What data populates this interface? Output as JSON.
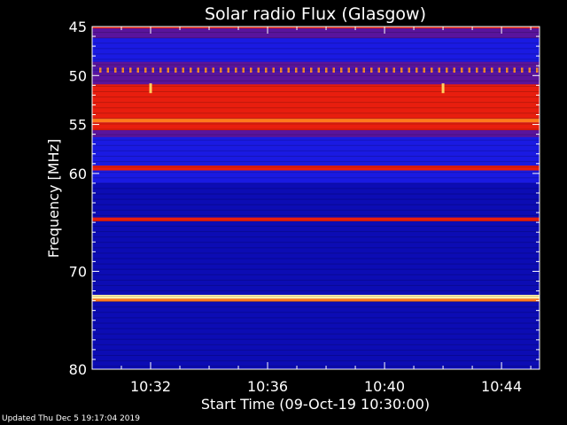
{
  "chart_data": {
    "type": "heatmap",
    "title": "Solar radio Flux (Glasgow)",
    "xlabel": "Start Time (09-Oct-19 10:30:00)",
    "ylabel": "Frequency [MHz]",
    "x_unit": "minutes after 10:30:00",
    "xlim": [
      0,
      15.3
    ],
    "ylim": [
      80,
      45
    ],
    "x_ticks": [
      {
        "value": 2,
        "label": "10:32"
      },
      {
        "value": 6,
        "label": "10:36"
      },
      {
        "value": 10,
        "label": "10:40"
      },
      {
        "value": 14,
        "label": "10:44"
      }
    ],
    "y_ticks": [
      {
        "value": 45,
        "label": "45"
      },
      {
        "value": 50,
        "label": "50"
      },
      {
        "value": 55,
        "label": "55"
      },
      {
        "value": 60,
        "label": "60"
      },
      {
        "value": 70,
        "label": "70"
      },
      {
        "value": 80,
        "label": "80"
      }
    ],
    "frequency_bands": [
      {
        "from": 44.8,
        "to": 45.2,
        "level": "red"
      },
      {
        "from": 45.2,
        "to": 46.2,
        "level": "purple"
      },
      {
        "from": 46.2,
        "to": 48.6,
        "level": "blue"
      },
      {
        "from": 48.6,
        "to": 49.2,
        "level": "purple"
      },
      {
        "from": 49.2,
        "to": 49.7,
        "level": "dotted"
      },
      {
        "from": 49.7,
        "to": 50.9,
        "level": "purple"
      },
      {
        "from": 50.9,
        "to": 54.4,
        "level": "red"
      },
      {
        "from": 54.4,
        "to": 54.8,
        "level": "orange"
      },
      {
        "from": 54.8,
        "to": 55.6,
        "level": "red"
      },
      {
        "from": 55.6,
        "to": 56.3,
        "level": "purple"
      },
      {
        "from": 56.3,
        "to": 59.2,
        "level": "blue"
      },
      {
        "from": 59.2,
        "to": 59.7,
        "level": "red"
      },
      {
        "from": 59.7,
        "to": 61.0,
        "level": "blue"
      },
      {
        "from": 61.0,
        "to": 64.5,
        "level": "darkblue"
      },
      {
        "from": 64.5,
        "to": 64.9,
        "level": "red"
      },
      {
        "from": 64.9,
        "to": 72.4,
        "level": "darkblue"
      },
      {
        "from": 72.4,
        "to": 72.8,
        "level": "yellow"
      },
      {
        "from": 72.8,
        "to": 73.1,
        "level": "orange"
      },
      {
        "from": 73.1,
        "to": 80.0,
        "level": "darkblue"
      }
    ],
    "level_colors": {
      "darkblue": "#0c0cb4",
      "blue": "#1a1ae2",
      "purple": "#5a149c",
      "red": "#e81e0e",
      "orange": "#ff7a1c",
      "yellow": "#fff2a8",
      "dotted": "#4a16a8"
    },
    "bursts": [
      {
        "time": 2.0,
        "freq": 51.3
      },
      {
        "time": 12.0,
        "freq": 51.3
      }
    ],
    "grid": false
  },
  "footer": "Updated Thu Dec  5 19:17:04 2019"
}
